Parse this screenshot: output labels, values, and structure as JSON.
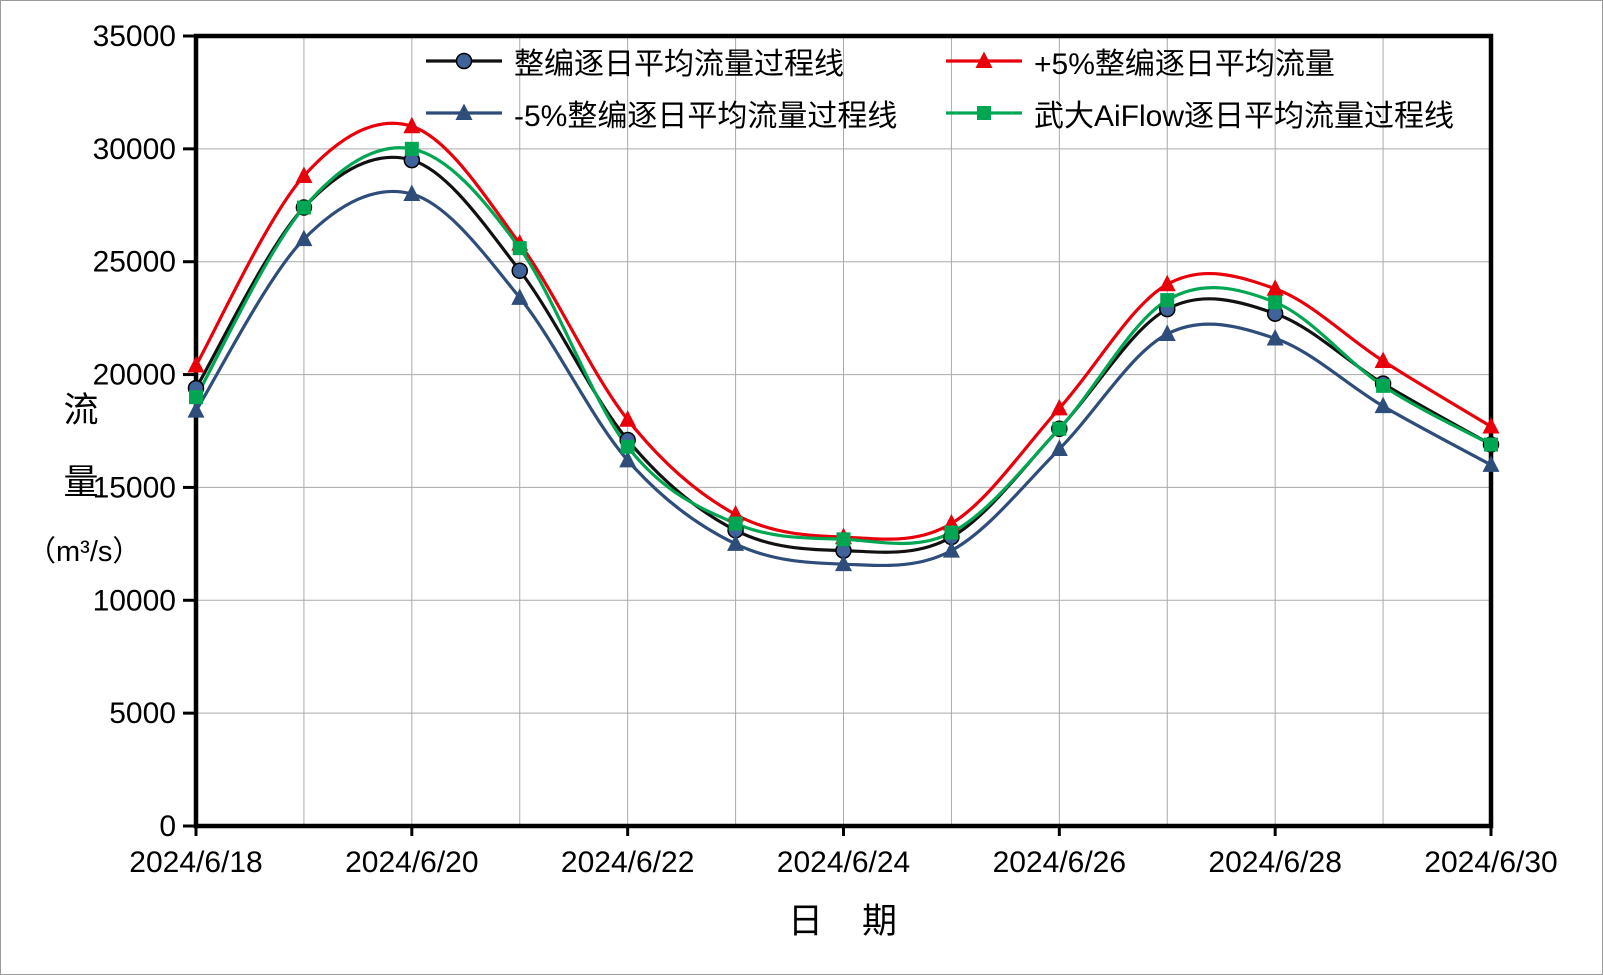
{
  "page": {
    "background": "#ffffff",
    "border_color": "#9b9b9b"
  },
  "chart_data": {
    "type": "line",
    "title": "",
    "xlabel": "日　期",
    "ylabel": "流量（m³/s）",
    "ylabel_lines": [
      "流",
      "量",
      "（m³/s）"
    ],
    "ylim": [
      0,
      35000
    ],
    "ytick_step": 5000,
    "grid": true,
    "grid_color": "#aaaaaa",
    "axis_color": "#000000",
    "legend_position": "top-inside",
    "y_tick_labels": [
      "0",
      "5000",
      "10000",
      "15000",
      "20000",
      "25000",
      "30000",
      "35000"
    ],
    "x_tick_labels": [
      "2024/6/18",
      "2024/6/20",
      "2024/6/22",
      "2024/6/24",
      "2024/6/26",
      "2024/6/28",
      "2024/6/30"
    ],
    "x": [
      "2024/6/18",
      "2024/6/19",
      "2024/6/20",
      "2024/6/21",
      "2024/6/22",
      "2024/6/23",
      "2024/6/24",
      "2024/6/25",
      "2024/6/26",
      "2024/6/27",
      "2024/6/28",
      "2024/6/29",
      "2024/6/30"
    ],
    "series": [
      {
        "name": "整编逐日平均流量过程线",
        "color": "#111111",
        "marker": "circle",
        "marker_color": "#41639c",
        "values": [
          19400,
          27400,
          29500,
          24600,
          17100,
          13100,
          12200,
          12800,
          17600,
          22900,
          22700,
          19600,
          16900
        ]
      },
      {
        "name": "+5%整编逐日平均流量",
        "color": "#e8000b",
        "marker": "triangle",
        "marker_color": "#e8000b",
        "values": [
          20400,
          28800,
          31000,
          25800,
          18000,
          13800,
          12800,
          13400,
          18500,
          24000,
          23800,
          20600,
          17700
        ]
      },
      {
        "name": "-5%整编逐日平均流量过程线",
        "color": "#2e4d7a",
        "marker": "triangle",
        "marker_color": "#2e4d7a",
        "values": [
          18400,
          26000,
          28000,
          23400,
          16200,
          12500,
          11600,
          12200,
          16700,
          21800,
          21600,
          18600,
          16000
        ]
      },
      {
        "name": "武大AiFlow逐日平均流量过程线",
        "color": "#00a651",
        "marker": "square",
        "marker_color": "#00a651",
        "values": [
          19000,
          27400,
          30000,
          25600,
          16800,
          13400,
          12700,
          13000,
          17600,
          23300,
          23200,
          19500,
          16900
        ]
      }
    ]
  }
}
